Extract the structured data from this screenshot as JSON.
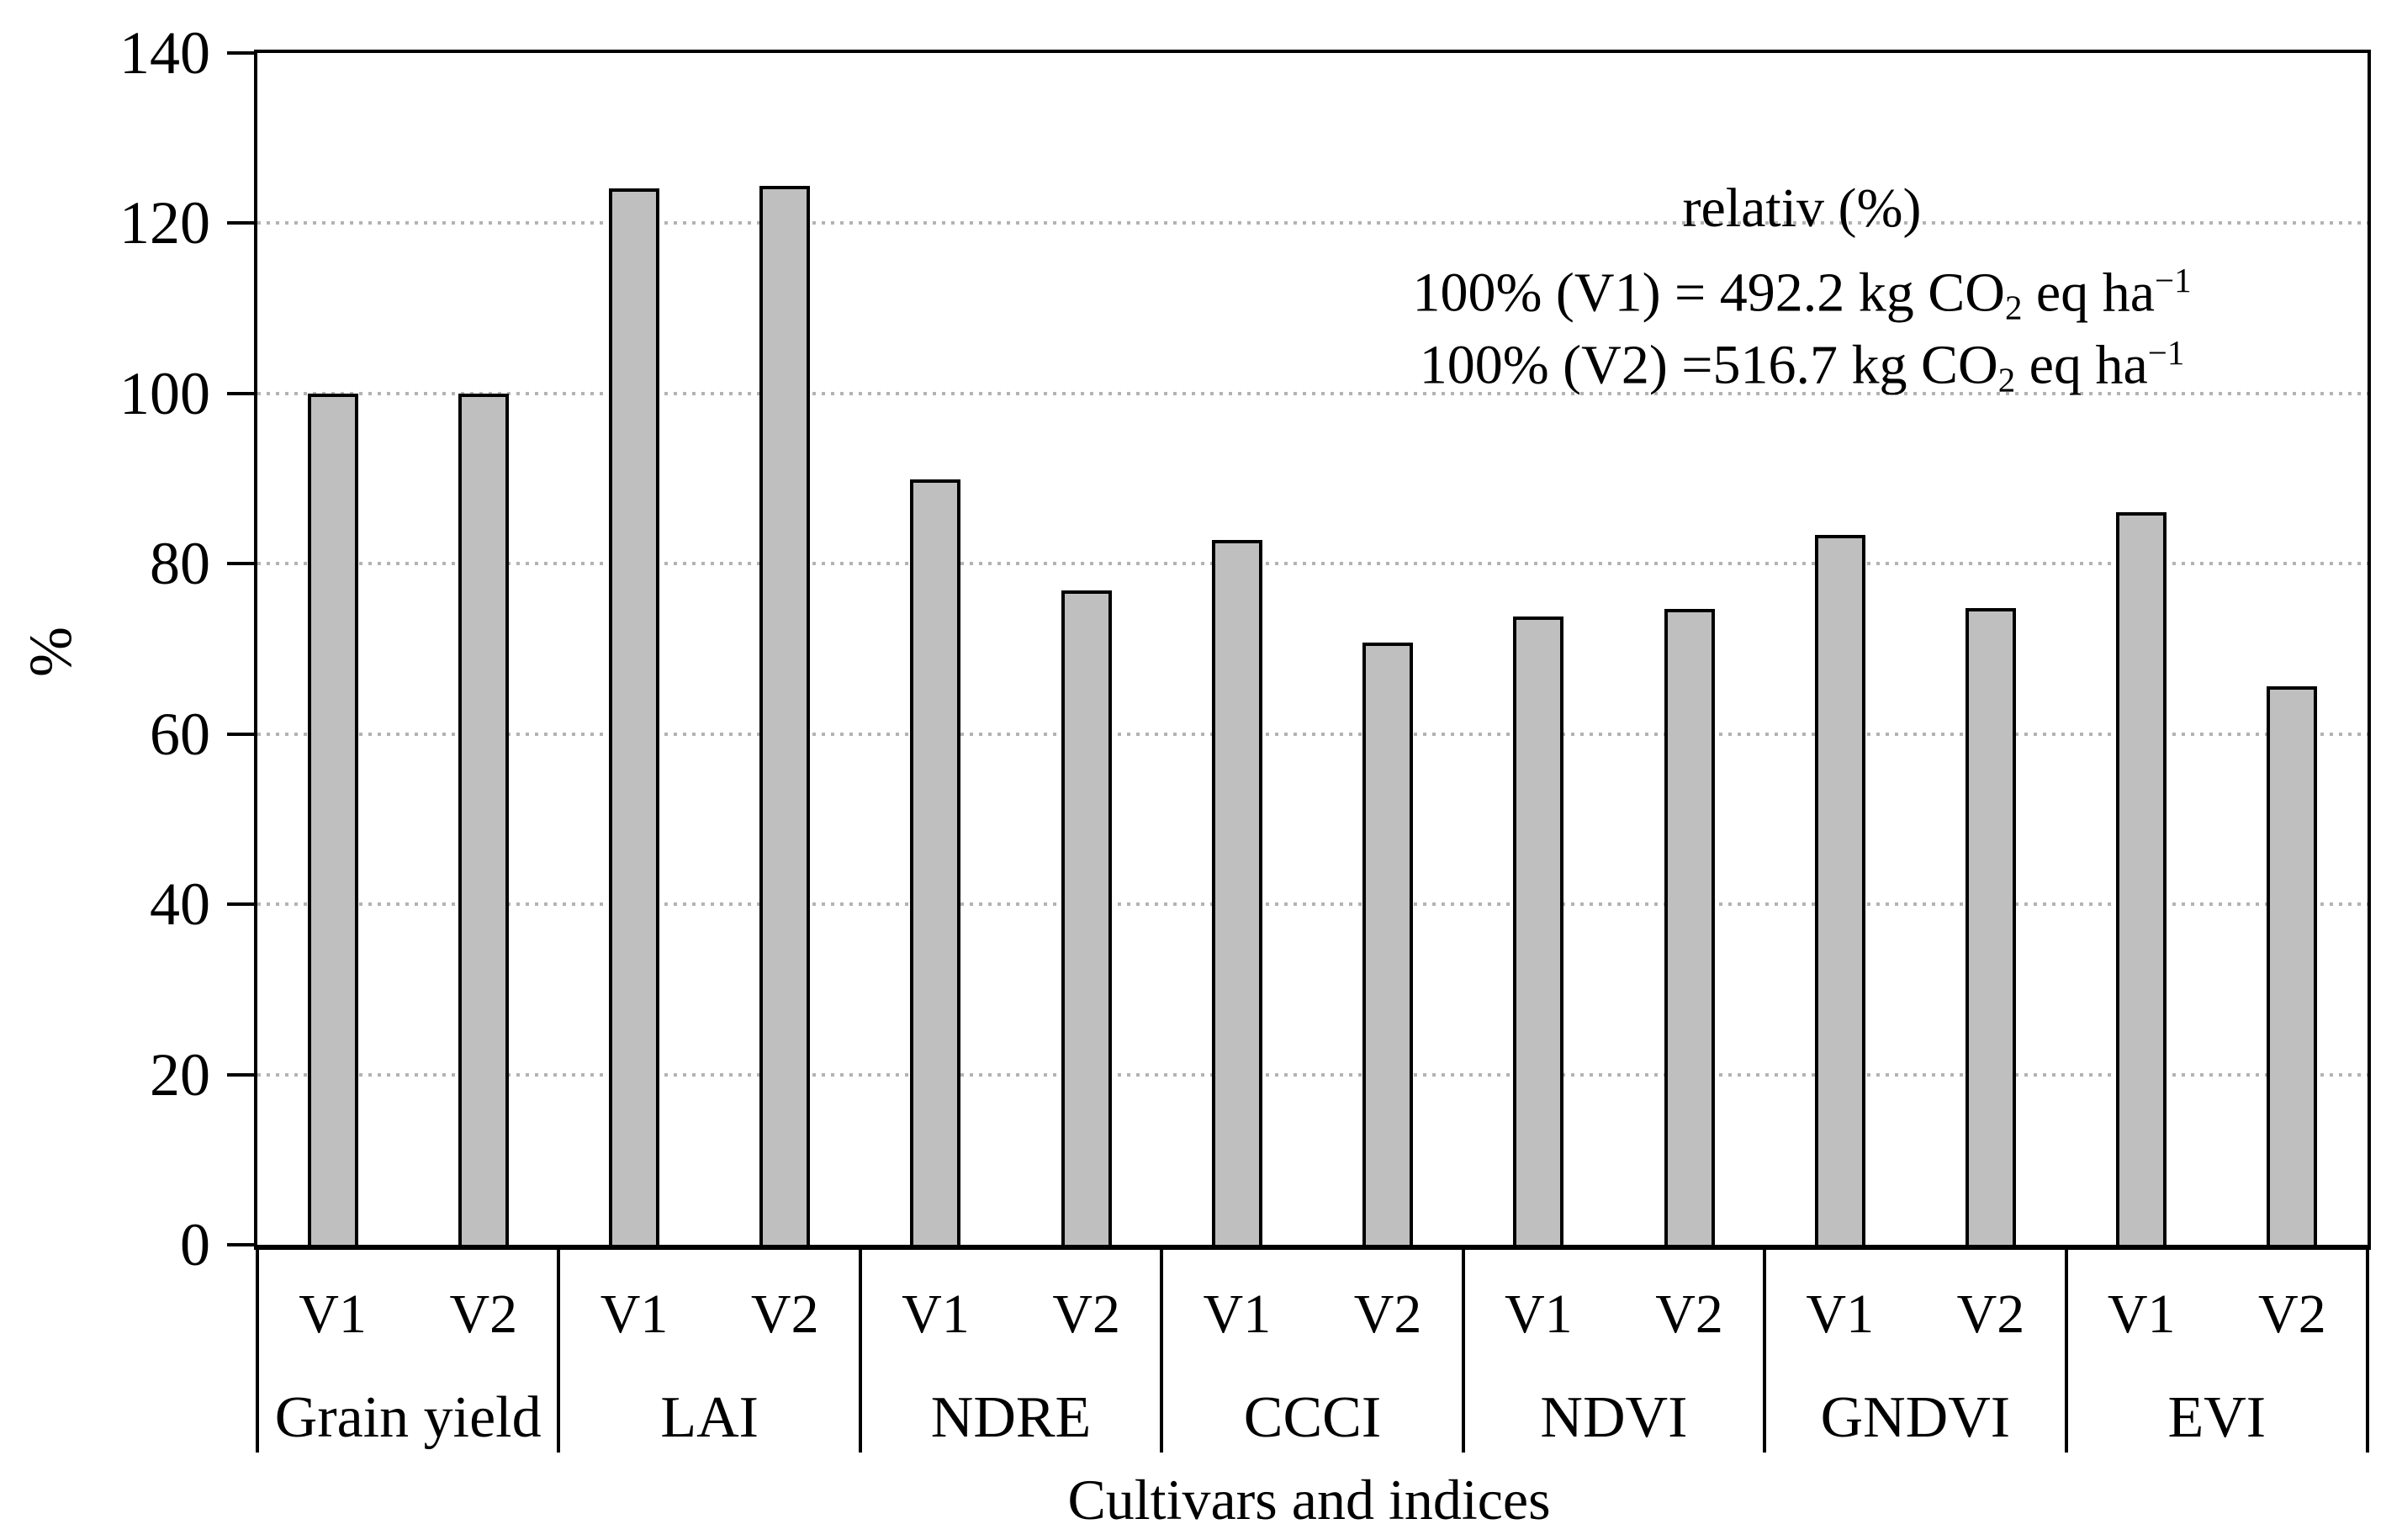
{
  "chart_data": {
    "type": "bar",
    "title": "",
    "xlabel": "Cultivars and indices",
    "ylabel": "%",
    "ylim": [
      0,
      140
    ],
    "yticks": [
      0,
      20,
      40,
      60,
      80,
      100,
      120,
      140
    ],
    "grid": "horizontal dotted gridlines at 20,40,60,80,100,120; plot box fully framed",
    "legend_position": "none",
    "categories": [
      "Grain yield",
      "LAI",
      "NDRE",
      "CCCI",
      "NDVI",
      "GNDVI",
      "EVI"
    ],
    "series": [
      {
        "name": "V1",
        "values": [
          100,
          124.1,
          89.9,
          82.8,
          73.8,
          83.4,
          86.1
        ]
      },
      {
        "name": "V2",
        "values": [
          100,
          124.4,
          76.9,
          70.7,
          74.7,
          74.8,
          65.6
        ]
      }
    ],
    "bar_fill_color": "#bfbfbf",
    "bar_border_color": "#000000",
    "gridline_color": "#b3b3b3"
  },
  "annotation": {
    "lines": [
      [
        {
          "text": "relativ (%)"
        }
      ],
      [
        {
          "text": "100% (V1) = 492.2 kg CO"
        },
        {
          "text": "2",
          "style": "sub"
        },
        {
          "text": " eq ha"
        },
        {
          "text": "−1",
          "style": "sup"
        }
      ],
      [
        {
          "text": "100% (V2) =516.7 kg CO"
        },
        {
          "text": "2",
          "style": "sub"
        },
        {
          "text": " eq ha"
        },
        {
          "text": "−1",
          "style": "sup"
        }
      ]
    ]
  }
}
